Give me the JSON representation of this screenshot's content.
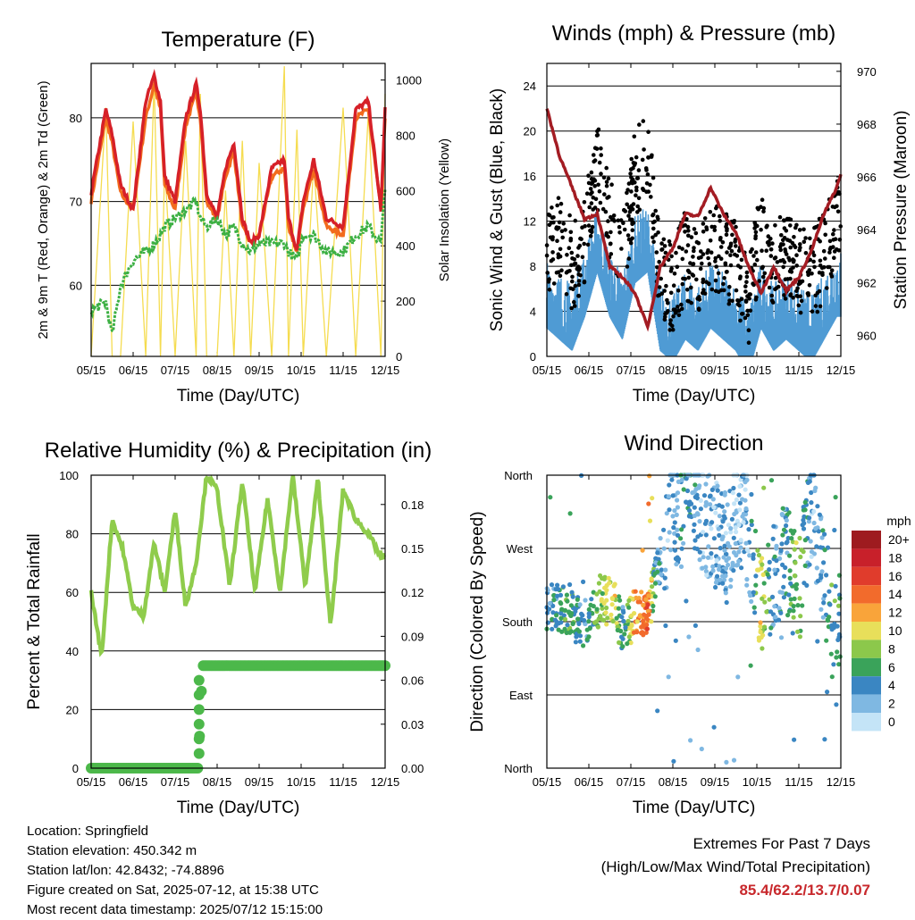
{
  "x_ticks": [
    "05/15",
    "06/15",
    "07/15",
    "08/15",
    "09/15",
    "10/15",
    "11/15",
    "12/15"
  ],
  "x_label": "Time (Day/UTC)",
  "colors": {
    "temp_2m": "#d62028",
    "temp_9m": "#f26b1d",
    "dewpoint": "#3cb043",
    "solar": "#f5dc50",
    "wind": "#4f9bd4",
    "gust": "#000000",
    "pressure": "#a31c23",
    "rh": "#8fcc4c",
    "precip": "#4cb84a",
    "grid": "#000000"
  },
  "panels": {
    "temperature": {
      "title": "Temperature (F)",
      "left_label": "2m & 9m T (Red, Orange) & 2m Td (Green)",
      "right_label": "Solar Insolation (Yellow)",
      "left_ticks": [
        "60",
        "70",
        "80"
      ],
      "right_ticks": [
        "0",
        "200",
        "400",
        "600",
        "800",
        "1000"
      ]
    },
    "wind": {
      "title": "Winds (mph) & Pressure (mb)",
      "left_label": "Sonic Wind & Gust (Blue, Black)",
      "right_label": "Station Pressure (Maroon)",
      "left_ticks": [
        "0",
        "4",
        "8",
        "12",
        "16",
        "20",
        "24"
      ],
      "right_ticks": [
        "960",
        "962",
        "964",
        "966",
        "968",
        "970"
      ]
    },
    "humidity": {
      "title": "Relative Humidity (%) & Precipitation (in)",
      "left_label": "Percent & Total Rainfall",
      "left_ticks": [
        "0",
        "20",
        "40",
        "60",
        "80",
        "100"
      ],
      "right_ticks": [
        "0.00",
        "0.03",
        "0.06",
        "0.09",
        "0.12",
        "0.15",
        "0.18"
      ]
    },
    "direction": {
      "title": "Wind Direction",
      "left_label": "Direction (Colored By Speed)",
      "left_ticks": [
        "North",
        "East",
        "South",
        "West",
        "North"
      ],
      "legend_title": "mph",
      "legend_labels": [
        "20+",
        "18",
        "16",
        "14",
        "12",
        "10",
        "8",
        "6",
        "4",
        "2",
        "0"
      ],
      "legend_colors": [
        "#9e1b1f",
        "#c8202a",
        "#e03c2c",
        "#f26b2c",
        "#f9a43a",
        "#e8df5a",
        "#8cc84b",
        "#3aa35a",
        "#3a86c2",
        "#7fb8e2",
        "#c4e4f7"
      ]
    }
  },
  "info": {
    "location": "Location: Springfield",
    "elevation": "Station elevation: 450.342 m",
    "latlon": "Station lat/lon: 42.8432; -74.8896",
    "created": "Figure created on Sat, 2025-07-12, at 15:38 UTC",
    "timestamp": "Most recent data timestamp: 2025/07/12 15:15:00"
  },
  "extremes": {
    "title": "Extremes For Past 7 Days",
    "subtitle": "(High/Low/Max Wind/Total Precipitation)",
    "values": "85.4/62.2/13.7/0.07"
  },
  "chart_data": [
    {
      "type": "line",
      "title": "Temperature (F)",
      "xlabel": "Time (Day/UTC)",
      "ylabel": "2m & 9m T (Red, Orange) & 2m Td (Green)",
      "y2label": "Solar Insolation (Yellow)",
      "ylim": [
        51.5,
        86.5
      ],
      "y2lim": [
        0,
        1060
      ],
      "x": [
        0,
        0.35,
        0.5,
        0.7,
        1.0,
        1.3,
        1.5,
        1.65,
        1.75,
        2.0,
        2.25,
        2.5,
        2.6,
        2.75,
        3.0,
        3.2,
        3.4,
        3.6,
        3.8,
        4.0,
        4.3,
        4.6,
        4.7,
        4.9,
        5.05,
        5.3,
        5.6,
        6.0,
        6.3,
        6.6,
        6.9,
        7.0
      ],
      "series": [
        {
          "name": "2m T",
          "values": [
            71,
            81,
            78,
            72,
            69,
            82,
            85,
            82,
            73,
            70,
            80,
            84,
            81,
            71,
            68,
            74,
            77,
            68,
            65,
            66,
            74,
            75,
            68,
            64,
            70,
            75,
            68,
            67,
            81,
            82,
            69,
            81
          ]
        },
        {
          "name": "9m T",
          "values": [
            70,
            80,
            77,
            71,
            69,
            80,
            84,
            81,
            72,
            69,
            79,
            83,
            80,
            70,
            68,
            73,
            76,
            67,
            65,
            66,
            73,
            74,
            67,
            64,
            69,
            74,
            67,
            66,
            80,
            81,
            69,
            80
          ]
        },
        {
          "name": "2m Td",
          "values": [
            57,
            58,
            54,
            60,
            63,
            64,
            65,
            66,
            67,
            68,
            69,
            70,
            68,
            67,
            68,
            66,
            67,
            65,
            64,
            65,
            65,
            65,
            64,
            63,
            66,
            66,
            64,
            64,
            66,
            67,
            65,
            72
          ]
        }
      ],
      "solar_series": {
        "name": "Solar Insolation",
        "values": [
          0,
          900,
          0,
          0,
          850,
          0,
          1000,
          0,
          700,
          0,
          780,
          0,
          950,
          0,
          0,
          600,
          0,
          780,
          0,
          700,
          0,
          1050,
          0,
          820,
          0,
          700,
          0,
          900,
          0,
          880,
          0,
          950
        ]
      }
    },
    {
      "type": "scatter",
      "title": "Winds (mph) & Pressure (mb)",
      "xlabel": "Time (Day/UTC)",
      "ylabel": "Sonic Wind & Gust (Blue, Black)",
      "y2label": "Station Pressure (Maroon)",
      "ylim": [
        0,
        26
      ],
      "y2lim": [
        959.2,
        970.3
      ],
      "x": [
        0,
        0.3,
        0.6,
        0.9,
        1.2,
        1.5,
        1.8,
        2.1,
        2.4,
        2.7,
        3.0,
        3.3,
        3.6,
        3.9,
        4.2,
        4.5,
        4.8,
        5.1,
        5.4,
        5.7,
        6.0,
        6.3,
        6.6,
        6.9,
        7.0
      ],
      "series": [
        {
          "name": "Wind",
          "values": [
            5,
            4,
            3,
            6,
            10,
            6,
            4,
            9,
            10,
            3,
            2,
            4,
            3,
            5,
            4,
            3,
            1,
            5,
            3,
            4,
            3,
            2,
            4,
            6,
            6
          ]
        },
        {
          "name": "Gust",
          "values": [
            9,
            11,
            8,
            10,
            17,
            12,
            9,
            16,
            18,
            7,
            6,
            9,
            7,
            10,
            9,
            8,
            5,
            11,
            8,
            9,
            8,
            7,
            9,
            12,
            13
          ]
        },
        {
          "name": "Station Pressure",
          "values": [
            968.6,
            966.8,
            965.6,
            964.4,
            964.6,
            962.6,
            962.2,
            961.6,
            960.3,
            962.6,
            963.3,
            964.6,
            964.5,
            965.6,
            964.6,
            963.9,
            962.6,
            961.6,
            962.6,
            961.7,
            962.2,
            963.2,
            964.6,
            965.6,
            966.1
          ]
        }
      ]
    },
    {
      "type": "line",
      "title": "Relative Humidity (%) & Precipitation (in)",
      "xlabel": "Time (Day/UTC)",
      "ylabel": "Percent & Total Rainfall",
      "ylim": [
        0,
        100
      ],
      "y2lim": [
        0,
        0.2
      ],
      "x": [
        0,
        0.25,
        0.5,
        0.75,
        1.0,
        1.25,
        1.5,
        1.75,
        2.0,
        2.25,
        2.5,
        2.75,
        3.0,
        3.3,
        3.6,
        3.9,
        4.2,
        4.5,
        4.8,
        5.1,
        5.4,
        5.7,
        6.0,
        6.3,
        6.6,
        6.9,
        7.0
      ],
      "series": [
        {
          "name": "Relative Humidity",
          "values": [
            60,
            38,
            85,
            75,
            55,
            52,
            77,
            60,
            88,
            55,
            70,
            100,
            95,
            62,
            98,
            60,
            92,
            60,
            100,
            62,
            99,
            48,
            95,
            85,
            80,
            72,
            72
          ]
        },
        {
          "name": "Total Rainfall",
          "values": [
            0,
            0,
            0,
            0,
            0,
            0,
            0,
            0,
            0,
            0,
            0.07,
            0.07,
            0.07,
            0.07,
            0.07,
            0.07,
            0.07,
            0.07,
            0.07,
            0.07,
            0.07,
            0.07,
            0.07,
            0.07,
            0.07,
            0.07,
            0.07
          ]
        }
      ]
    },
    {
      "type": "scatter",
      "title": "Wind Direction",
      "xlabel": "Time (Day/UTC)",
      "ylabel": "Direction (Colored By Speed)",
      "y_categories": [
        "North",
        "East",
        "South",
        "West",
        "North"
      ],
      "x": [
        0.2,
        0.5,
        0.9,
        1.3,
        1.6,
        1.8,
        2.1,
        2.4,
        2.6,
        2.9,
        3.3,
        3.6,
        3.9,
        4.2,
        4.5,
        4.8,
        5.1,
        5.4,
        5.7,
        6.0,
        6.3,
        6.6,
        6.9
      ],
      "direction_deg": [
        200,
        190,
        175,
        210,
        200,
        170,
        190,
        195,
        230,
        300,
        340,
        320,
        300,
        270,
        320,
        290,
        200,
        230,
        260,
        210,
        330,
        230,
        180
      ],
      "speed": [
        4,
        6,
        4,
        8,
        10,
        4,
        12,
        14,
        4,
        2,
        4,
        3,
        2,
        3,
        2,
        2,
        10,
        3,
        4,
        8,
        2,
        4,
        6
      ]
    }
  ]
}
